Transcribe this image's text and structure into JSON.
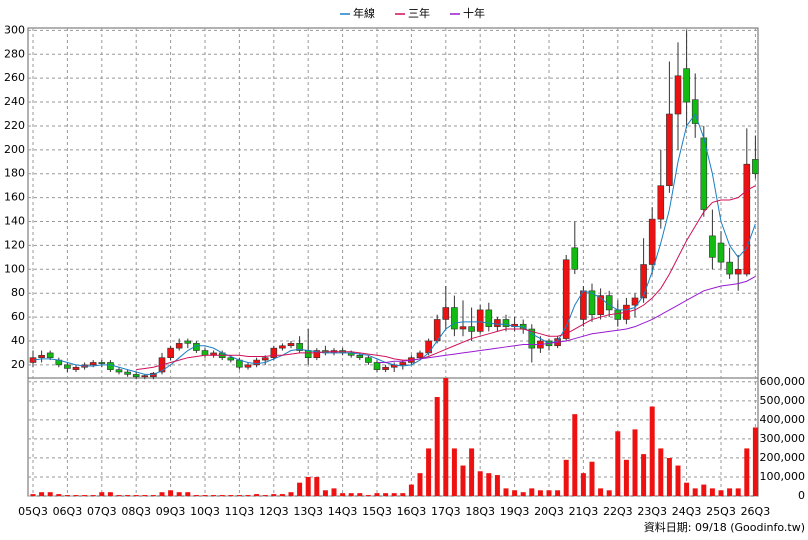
{
  "chart_data": [
    {
      "type": "candlestick",
      "categories": [
        "05Q3",
        null,
        null,
        null,
        "06Q3",
        null,
        null,
        null,
        "07Q3",
        null,
        null,
        null,
        "08Q3",
        null,
        null,
        null,
        "09Q3",
        null,
        null,
        null,
        "10Q3",
        null,
        null,
        null,
        "11Q3",
        null,
        null,
        null,
        "12Q3",
        null,
        null,
        null,
        "13Q3",
        null,
        null,
        null,
        "14Q3",
        null,
        null,
        null,
        "15Q3",
        null,
        null,
        null,
        "16Q3",
        null,
        null,
        null,
        "17Q3",
        null,
        null,
        null,
        "18Q3",
        null,
        null,
        null,
        "19Q3",
        null,
        null,
        null,
        "20Q3",
        null,
        null,
        null,
        "21Q3",
        null,
        null,
        null,
        "22Q3",
        null,
        null,
        null,
        "23Q3",
        null,
        null,
        null,
        "24Q3",
        null,
        null,
        null,
        "25Q3",
        null,
        null,
        null,
        "26Q3"
      ],
      "open": [
        22,
        26,
        30,
        24,
        20,
        16,
        18,
        20,
        22,
        22,
        16,
        14,
        12,
        10,
        10,
        14,
        26,
        34,
        40,
        38,
        32,
        28,
        30,
        26,
        24,
        18,
        20,
        24,
        26,
        34,
        36,
        38,
        32,
        26,
        32,
        30,
        32,
        30,
        28,
        26,
        22,
        16,
        18,
        20,
        22,
        26,
        30,
        40,
        58,
        68,
        50,
        52,
        48,
        66,
        52,
        58,
        52,
        54,
        50,
        34,
        40,
        36,
        42,
        118,
        58,
        82,
        62,
        78,
        66,
        58,
        70,
        76,
        104,
        142,
        170,
        230,
        268,
        242,
        210,
        128,
        122,
        106,
        96,
        96,
        192
      ],
      "high": [
        32,
        32,
        32,
        26,
        22,
        20,
        22,
        24,
        24,
        24,
        18,
        16,
        14,
        12,
        14,
        30,
        36,
        42,
        42,
        40,
        34,
        32,
        32,
        28,
        26,
        22,
        26,
        28,
        36,
        38,
        40,
        44,
        50,
        34,
        36,
        34,
        34,
        32,
        30,
        28,
        24,
        20,
        22,
        24,
        28,
        32,
        42,
        62,
        86,
        78,
        74,
        68,
        70,
        72,
        60,
        62,
        60,
        58,
        54,
        44,
        42,
        44,
        112,
        140,
        86,
        88,
        84,
        82,
        74,
        76,
        80,
        126,
        152,
        200,
        274,
        290,
        300,
        264,
        220,
        150,
        132,
        118,
        112,
        218,
        212
      ],
      "low": [
        18,
        22,
        24,
        18,
        14,
        14,
        16,
        18,
        18,
        14,
        12,
        10,
        8,
        8,
        8,
        12,
        24,
        32,
        34,
        30,
        26,
        26,
        24,
        22,
        16,
        16,
        18,
        20,
        24,
        32,
        34,
        30,
        20,
        24,
        28,
        28,
        28,
        26,
        24,
        20,
        14,
        14,
        14,
        16,
        20,
        24,
        28,
        38,
        50,
        44,
        44,
        40,
        46,
        48,
        48,
        48,
        48,
        46,
        22,
        30,
        32,
        34,
        40,
        96,
        52,
        56,
        58,
        60,
        52,
        54,
        60,
        72,
        96,
        134,
        164,
        200,
        218,
        210,
        144,
        100,
        100,
        92,
        82,
        94,
        176
      ],
      "close": [
        26,
        28,
        26,
        20,
        17,
        18,
        20,
        22,
        21,
        16,
        14,
        12,
        10,
        11,
        13,
        26,
        34,
        38,
        38,
        32,
        28,
        30,
        26,
        24,
        18,
        20,
        24,
        26,
        34,
        36,
        38,
        32,
        26,
        32,
        30,
        32,
        30,
        28,
        26,
        22,
        16,
        18,
        20,
        22,
        26,
        30,
        40,
        58,
        68,
        50,
        52,
        48,
        66,
        52,
        58,
        52,
        54,
        50,
        34,
        40,
        36,
        42,
        108,
        100,
        82,
        62,
        78,
        66,
        58,
        70,
        76,
        104,
        142,
        170,
        230,
        262,
        240,
        222,
        150,
        110,
        106,
        96,
        100,
        188,
        180
      ],
      "up_color": "#ee1111",
      "down_color": "#11bb11",
      "series": [
        {
          "name": "年線",
          "color": "#1a7fc4",
          "values": [
            24,
            25,
            25,
            24,
            22,
            20,
            19,
            19,
            20,
            20,
            18,
            16,
            14,
            12,
            12,
            15,
            20,
            26,
            32,
            36,
            36,
            34,
            30,
            27,
            24,
            22,
            21,
            22,
            25,
            28,
            32,
            33,
            32,
            31,
            30,
            30,
            30,
            30,
            29,
            28,
            25,
            22,
            20,
            19,
            20,
            24,
            30,
            40,
            50,
            55,
            56,
            56,
            56,
            55,
            54,
            54,
            52,
            52,
            46,
            42,
            38,
            40,
            52,
            70,
            82,
            80,
            76,
            70,
            66,
            66,
            68,
            78,
            98,
            122,
            150,
            190,
            220,
            230,
            210,
            180,
            140,
            120,
            110,
            118,
            138
          ]
        },
        {
          "name": "三年",
          "color": "#d0105a",
          "values": [
            null,
            null,
            null,
            null,
            null,
            null,
            null,
            null,
            null,
            null,
            null,
            null,
            16,
            17,
            18,
            20,
            22,
            24,
            26,
            27,
            28,
            28,
            28,
            28,
            28,
            27,
            27,
            27,
            28,
            28,
            29,
            30,
            30,
            30,
            31,
            31,
            31,
            31,
            30,
            29,
            28,
            27,
            25,
            24,
            24,
            25,
            27,
            30,
            33,
            36,
            39,
            42,
            44,
            46,
            48,
            50,
            50,
            50,
            48,
            46,
            44,
            44,
            46,
            50,
            54,
            58,
            60,
            62,
            63,
            64,
            66,
            70,
            76,
            84,
            96,
            110,
            124,
            136,
            148,
            156,
            158,
            158,
            160,
            166,
            170
          ]
        },
        {
          "name": "十年",
          "color": "#9a1ad0",
          "values": [
            null,
            null,
            null,
            null,
            null,
            null,
            null,
            null,
            null,
            null,
            null,
            null,
            null,
            null,
            null,
            null,
            null,
            null,
            null,
            null,
            null,
            null,
            null,
            null,
            null,
            null,
            null,
            null,
            null,
            null,
            null,
            null,
            null,
            null,
            null,
            null,
            null,
            null,
            null,
            null,
            22,
            22,
            23,
            23,
            24,
            25,
            26,
            27,
            28,
            29,
            30,
            31,
            32,
            33,
            34,
            35,
            36,
            37,
            37,
            37,
            38,
            39,
            40,
            42,
            44,
            46,
            47,
            48,
            49,
            50,
            52,
            55,
            58,
            62,
            66,
            70,
            74,
            78,
            82,
            84,
            86,
            87,
            88,
            90,
            94
          ]
        }
      ],
      "ylim": [
        9,
        302
      ],
      "yticks": [
        20,
        40,
        60,
        80,
        100,
        120,
        140,
        160,
        180,
        200,
        220,
        240,
        260,
        280,
        300
      ],
      "grid": true,
      "legend": "top"
    },
    {
      "type": "bar",
      "color": "#ee1111",
      "values": [
        10000,
        20000,
        20000,
        10000,
        5000,
        5000,
        5000,
        5000,
        20000,
        20000,
        5000,
        5000,
        5000,
        5000,
        5000,
        20000,
        30000,
        20000,
        20000,
        5000,
        5000,
        5000,
        5000,
        5000,
        5000,
        5000,
        10000,
        5000,
        10000,
        10000,
        20000,
        70000,
        100000,
        100000,
        30000,
        40000,
        15000,
        15000,
        15000,
        5000,
        15000,
        15000,
        15000,
        15000,
        60000,
        120000,
        250000,
        520000,
        620000,
        250000,
        160000,
        250000,
        130000,
        120000,
        110000,
        40000,
        30000,
        20000,
        40000,
        30000,
        30000,
        30000,
        190000,
        430000,
        120000,
        180000,
        40000,
        30000,
        340000,
        190000,
        350000,
        220000,
        470000,
        250000,
        200000,
        160000,
        70000,
        40000,
        60000,
        40000,
        30000,
        40000,
        40000,
        250000,
        360000
      ],
      "ylim": [
        0,
        620000
      ],
      "yticks": [
        0,
        {
          "value": 100000,
          "label": "100,000"
        },
        {
          "value": 200000,
          "label": "200,000"
        },
        {
          "value": 300000,
          "label": "300,000"
        },
        {
          "value": 400000,
          "label": "400,000"
        },
        {
          "value": 500000,
          "label": "500,000"
        },
        {
          "value": 600000,
          "label": "600,000"
        }
      ],
      "grid": true
    }
  ],
  "footer": "資料日期: 09/18 (Goodinfo.tw)"
}
